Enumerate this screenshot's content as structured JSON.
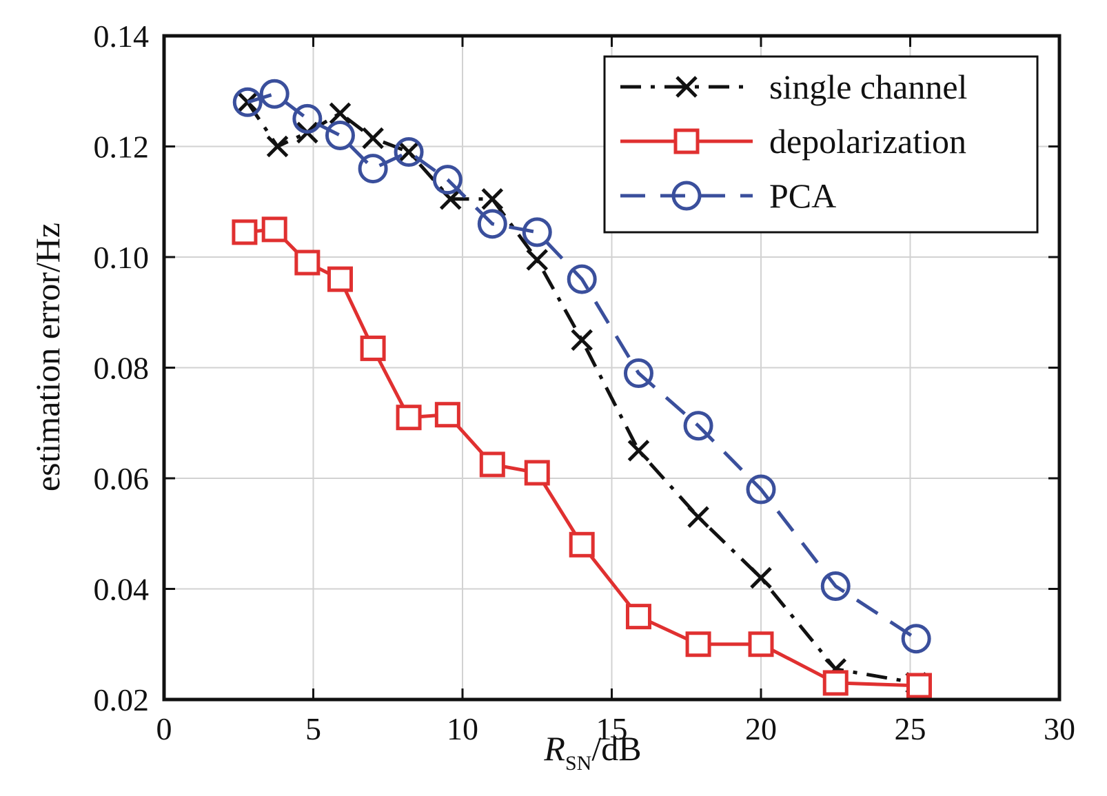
{
  "chart_data": {
    "type": "line",
    "xlabel": "R",
    "xlabel_sub": "SN",
    "xlabel_suffix": "/dB",
    "ylabel": "estimation error/Hz",
    "xlim": [
      0,
      30
    ],
    "ylim": [
      0.02,
      0.14
    ],
    "xticks": [
      "0",
      "5",
      "10",
      "15",
      "20",
      "25",
      "30"
    ],
    "yticks": [
      "0.02",
      "0.04",
      "0.06",
      "0.08",
      "0.10",
      "0.12",
      "0.14"
    ],
    "grid": true,
    "legend_position": "top-right",
    "series": [
      {
        "name": "single channel",
        "color": "#111111",
        "line_style": "dash-dot",
        "marker": "x",
        "x": [
          2.8,
          3.8,
          4.8,
          5.9,
          7.0,
          8.2,
          9.6,
          11.0,
          12.5,
          14.0,
          15.9,
          17.9,
          20.0,
          22.5,
          25.2
        ],
        "y": [
          0.128,
          0.12,
          0.1225,
          0.126,
          0.1215,
          0.119,
          0.1105,
          0.1105,
          0.0995,
          0.085,
          0.065,
          0.053,
          0.042,
          0.0255,
          0.023
        ]
      },
      {
        "name": "depolarization",
        "color": "#e03030",
        "line_style": "solid",
        "marker": "square",
        "x": [
          2.7,
          3.7,
          4.8,
          5.9,
          7.0,
          8.2,
          9.5,
          11.0,
          12.5,
          14.0,
          15.9,
          17.9,
          20.0,
          22.5,
          25.3
        ],
        "y": [
          0.1045,
          0.105,
          0.099,
          0.096,
          0.0835,
          0.071,
          0.0715,
          0.0625,
          0.061,
          0.048,
          0.035,
          0.03,
          0.03,
          0.023,
          0.0225
        ]
      },
      {
        "name": "PCA",
        "color": "#3a4f9c",
        "line_style": "dashed",
        "marker": "circle",
        "x": [
          2.8,
          3.7,
          4.8,
          5.9,
          7.0,
          8.2,
          9.5,
          11.0,
          12.5,
          14.0,
          15.9,
          17.9,
          20.0,
          22.5,
          25.2
        ],
        "y": [
          0.128,
          0.1295,
          0.125,
          0.122,
          0.116,
          0.119,
          0.114,
          0.106,
          0.1045,
          0.096,
          0.079,
          0.0695,
          0.058,
          0.0405,
          0.031
        ]
      }
    ]
  }
}
